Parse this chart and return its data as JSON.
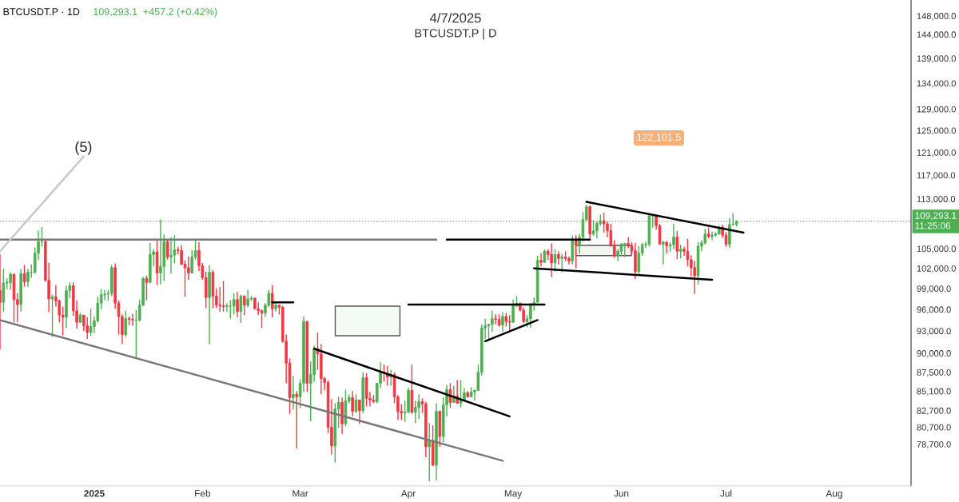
{
  "chart_data": {
    "type": "candlestick",
    "title": "4/7/2025",
    "subtitle": "BTCUSDT.P | D",
    "annotations": [
      "BTCUSDT.P · 1D",
      "109,293.1  +457.2 (+0.42%)",
      "(5)",
      "122,101.5"
    ],
    "x": [
      "2024-12-05",
      "2024-12-06",
      "2024-12-07",
      "2024-12-08",
      "2024-12-09",
      "2024-12-10",
      "2024-12-11",
      "2024-12-12",
      "2024-12-13",
      "2024-12-14",
      "2024-12-15",
      "2024-12-16",
      "2024-12-17",
      "2024-12-18",
      "2024-12-19",
      "2024-12-20",
      "2024-12-21",
      "2024-12-22",
      "2024-12-23",
      "2024-12-24",
      "2024-12-25",
      "2024-12-26",
      "2024-12-27",
      "2024-12-28",
      "2024-12-29",
      "2024-12-30",
      "2024-12-31",
      "2025-01-01",
      "2025-01-02",
      "2025-01-03",
      "2025-01-04",
      "2025-01-05",
      "2025-01-06",
      "2025-01-07",
      "2025-01-08",
      "2025-01-09",
      "2025-01-10",
      "2025-01-11",
      "2025-01-12",
      "2025-01-13",
      "2025-01-14",
      "2025-01-15",
      "2025-01-16",
      "2025-01-17",
      "2025-01-18",
      "2025-01-19",
      "2025-01-20",
      "2025-01-21",
      "2025-01-22",
      "2025-01-23",
      "2025-01-24",
      "2025-01-25",
      "2025-01-26",
      "2025-01-27",
      "2025-01-28",
      "2025-01-29",
      "2025-01-30",
      "2025-01-31",
      "2025-02-01",
      "2025-02-02",
      "2025-02-03",
      "2025-02-04",
      "2025-02-05",
      "2025-02-06",
      "2025-02-07",
      "2025-02-08",
      "2025-02-09",
      "2025-02-10",
      "2025-02-11",
      "2025-02-12",
      "2025-02-13",
      "2025-02-14",
      "2025-02-15",
      "2025-02-16",
      "2025-02-17",
      "2025-02-18",
      "2025-02-19",
      "2025-02-20",
      "2025-02-21",
      "2025-02-22",
      "2025-02-23",
      "2025-02-24",
      "2025-02-25",
      "2025-02-26",
      "2025-02-27",
      "2025-02-28",
      "2025-03-01",
      "2025-03-02",
      "2025-03-03",
      "2025-03-04",
      "2025-03-05",
      "2025-03-06",
      "2025-03-07",
      "2025-03-08",
      "2025-03-09",
      "2025-03-10",
      "2025-03-11",
      "2025-03-12",
      "2025-03-13",
      "2025-03-14",
      "2025-03-15",
      "2025-03-16",
      "2025-03-17",
      "2025-03-18",
      "2025-03-19",
      "2025-03-20",
      "2025-03-21",
      "2025-03-22",
      "2025-03-23",
      "2025-03-24",
      "2025-03-25",
      "2025-03-26",
      "2025-03-27",
      "2025-03-28",
      "2025-03-29",
      "2025-03-30",
      "2025-03-31",
      "2025-04-01",
      "2025-04-02",
      "2025-04-03",
      "2025-04-04",
      "2025-04-05",
      "2025-04-06",
      "2025-04-07",
      "2025-04-08",
      "2025-04-09",
      "2025-04-10",
      "2025-04-11",
      "2025-04-12",
      "2025-04-13",
      "2025-04-14",
      "2025-04-15",
      "2025-04-16",
      "2025-04-17",
      "2025-04-18",
      "2025-04-19",
      "2025-04-20",
      "2025-04-21",
      "2025-04-22",
      "2025-04-23",
      "2025-04-24",
      "2025-04-25",
      "2025-04-26",
      "2025-04-27",
      "2025-04-28",
      "2025-04-29",
      "2025-04-30",
      "2025-05-01",
      "2025-05-02",
      "2025-05-03",
      "2025-05-04",
      "2025-05-05",
      "2025-05-06",
      "2025-05-07",
      "2025-05-08",
      "2025-05-09",
      "2025-05-10",
      "2025-05-11",
      "2025-05-12",
      "2025-05-13",
      "2025-05-14",
      "2025-05-15",
      "2025-05-16",
      "2025-05-17",
      "2025-05-18",
      "2025-05-19",
      "2025-05-20",
      "2025-05-21",
      "2025-05-22",
      "2025-05-23",
      "2025-05-24",
      "2025-05-25",
      "2025-05-26",
      "2025-05-27",
      "2025-05-28",
      "2025-05-29",
      "2025-05-30",
      "2025-05-31",
      "2025-06-01",
      "2025-06-02",
      "2025-06-03",
      "2025-06-04",
      "2025-06-05",
      "2025-06-06",
      "2025-06-07",
      "2025-06-08",
      "2025-06-09",
      "2025-06-10",
      "2025-06-11",
      "2025-06-12",
      "2025-06-13",
      "2025-06-14",
      "2025-06-15",
      "2025-06-16",
      "2025-06-17",
      "2025-06-18",
      "2025-06-19",
      "2025-06-20",
      "2025-06-21",
      "2025-06-22",
      "2025-06-23",
      "2025-06-24",
      "2025-06-25",
      "2025-06-26",
      "2025-06-27",
      "2025-06-28",
      "2025-06-29",
      "2025-06-30",
      "2025-07-01",
      "2025-07-02",
      "2025-07-03",
      "2025-07-04"
    ],
    "ohlc": [
      [
        98700,
        104100,
        90500,
        97000
      ],
      [
        97000,
        101900,
        95700,
        99800
      ],
      [
        99800,
        100500,
        98900,
        99900
      ],
      [
        99900,
        101400,
        98800,
        101100
      ],
      [
        101100,
        101200,
        94200,
        97400
      ],
      [
        97400,
        98300,
        94200,
        96700
      ],
      [
        96700,
        101900,
        95700,
        101200
      ],
      [
        101200,
        102500,
        99300,
        100000
      ],
      [
        100000,
        101900,
        99200,
        101400
      ],
      [
        101400,
        102600,
        100600,
        101400
      ],
      [
        101400,
        105200,
        101200,
        104300
      ],
      [
        104300,
        107800,
        103300,
        106100
      ],
      [
        106100,
        108400,
        105300,
        106100
      ],
      [
        106100,
        106500,
        100000,
        100200
      ],
      [
        100200,
        102800,
        95600,
        97500
      ],
      [
        97500,
        98100,
        92200,
        97800
      ],
      [
        97800,
        99500,
        96400,
        97200
      ],
      [
        97200,
        97400,
        94200,
        95200
      ],
      [
        95200,
        96400,
        92400,
        94900
      ],
      [
        94900,
        99400,
        93400,
        98700
      ],
      [
        98700,
        99900,
        97600,
        99400
      ],
      [
        99400,
        99900,
        95100,
        95800
      ],
      [
        95800,
        97300,
        93300,
        94200
      ],
      [
        94200,
        95500,
        94100,
        95200
      ],
      [
        95200,
        95200,
        93000,
        93700
      ],
      [
        93700,
        94900,
        91900,
        92800
      ],
      [
        92800,
        96100,
        92300,
        93600
      ],
      [
        93600,
        95000,
        92700,
        94400
      ],
      [
        94400,
        97800,
        94200,
        96900
      ],
      [
        96900,
        98900,
        96000,
        98100
      ],
      [
        98100,
        98800,
        97300,
        98200
      ],
      [
        98200,
        98800,
        97200,
        98300
      ],
      [
        98300,
        102500,
        97900,
        102100
      ],
      [
        102100,
        102700,
        96100,
        96900
      ],
      [
        96900,
        97300,
        92500,
        95000
      ],
      [
        95000,
        95300,
        91200,
        92500
      ],
      [
        92500,
        95800,
        92200,
        94700
      ],
      [
        94700,
        95000,
        93800,
        94600
      ],
      [
        94600,
        95400,
        93700,
        94500
      ],
      [
        94500,
        95900,
        89300,
        94500
      ],
      [
        94500,
        97400,
        94300,
        96600
      ],
      [
        96600,
        100700,
        96500,
        100500
      ],
      [
        100500,
        100900,
        97300,
        99900
      ],
      [
        99900,
        105900,
        99900,
        104100
      ],
      [
        104100,
        104900,
        102300,
        104500
      ],
      [
        104500,
        106300,
        99500,
        101300
      ],
      [
        101300,
        109600,
        99600,
        102300
      ],
      [
        102300,
        107200,
        100100,
        106100
      ],
      [
        106100,
        106400,
        103300,
        103700
      ],
      [
        103700,
        106800,
        101200,
        104000
      ],
      [
        104000,
        107100,
        102800,
        104800
      ],
      [
        104800,
        105300,
        104100,
        104700
      ],
      [
        104700,
        105500,
        102500,
        102600
      ],
      [
        102600,
        103200,
        97800,
        102100
      ],
      [
        102100,
        103800,
        100300,
        101300
      ],
      [
        101300,
        104800,
        101300,
        103700
      ],
      [
        103700,
        106500,
        103300,
        104700
      ],
      [
        104700,
        106000,
        101600,
        102400
      ],
      [
        102400,
        102800,
        100300,
        100600
      ],
      [
        100600,
        101500,
        96200,
        97700
      ],
      [
        97700,
        102500,
        91200,
        101400
      ],
      [
        101400,
        101700,
        96200,
        97900
      ],
      [
        97900,
        99000,
        96200,
        96600
      ],
      [
        96600,
        99200,
        95700,
        96500
      ],
      [
        96500,
        100100,
        95700,
        96400
      ],
      [
        96400,
        96900,
        95700,
        96500
      ],
      [
        96500,
        97300,
        94700,
        96500
      ],
      [
        96500,
        98300,
        95300,
        97400
      ],
      [
        97400,
        98500,
        94900,
        95700
      ],
      [
        95700,
        98100,
        94100,
        97900
      ],
      [
        97900,
        98000,
        95200,
        96600
      ],
      [
        96600,
        98800,
        96300,
        97500
      ],
      [
        97500,
        97900,
        97200,
        97600
      ],
      [
        97600,
        97700,
        96000,
        96100
      ],
      [
        96100,
        97000,
        95200,
        95800
      ],
      [
        95800,
        96000,
        93400,
        95500
      ],
      [
        95500,
        96900,
        95000,
        96600
      ],
      [
        96600,
        98800,
        96300,
        98300
      ],
      [
        98300,
        99500,
        94900,
        96100
      ],
      [
        96100,
        96900,
        95700,
        96600
      ],
      [
        96600,
        96700,
        95300,
        96300
      ],
      [
        96300,
        96500,
        91400,
        91600
      ],
      [
        91600,
        92500,
        86100,
        88700
      ],
      [
        88700,
        89300,
        82300,
        84300
      ],
      [
        84300,
        87000,
        82800,
        84700
      ],
      [
        84700,
        85100,
        78200,
        84400
      ],
      [
        84400,
        86600,
        83000,
        86100
      ],
      [
        86100,
        95000,
        85000,
        94300
      ],
      [
        94300,
        94400,
        85000,
        86100
      ],
      [
        86100,
        88900,
        81400,
        87200
      ],
      [
        87200,
        91000,
        86300,
        90600
      ],
      [
        90600,
        92800,
        87800,
        89900
      ],
      [
        89900,
        91200,
        84700,
        86700
      ],
      [
        86700,
        86900,
        85200,
        86200
      ],
      [
        86200,
        86500,
        80000,
        80700
      ],
      [
        80700,
        84100,
        77500,
        78500
      ],
      [
        78500,
        83600,
        76600,
        82900
      ],
      [
        82900,
        84400,
        80600,
        83700
      ],
      [
        83700,
        84300,
        79900,
        81100
      ],
      [
        81100,
        85300,
        80800,
        83900
      ],
      [
        83900,
        84700,
        83600,
        84300
      ],
      [
        84300,
        85100,
        82000,
        82600
      ],
      [
        82600,
        84700,
        82400,
        84000
      ],
      [
        84000,
        84000,
        81100,
        82700
      ],
      [
        82700,
        87500,
        82400,
        86800
      ],
      [
        86800,
        87400,
        83200,
        84200
      ],
      [
        84200,
        85000,
        83200,
        84000
      ],
      [
        84000,
        84600,
        83600,
        83800
      ],
      [
        83800,
        86100,
        83600,
        86100
      ],
      [
        86100,
        88800,
        85500,
        87500
      ],
      [
        87500,
        88500,
        86300,
        87400
      ],
      [
        87400,
        88300,
        85800,
        86900
      ],
      [
        86900,
        87800,
        85800,
        87200
      ],
      [
        87200,
        87500,
        83600,
        84400
      ],
      [
        84400,
        84600,
        81600,
        82600
      ],
      [
        82600,
        83500,
        81600,
        82400
      ],
      [
        82400,
        83900,
        81300,
        82500
      ],
      [
        82500,
        85500,
        82400,
        85200
      ],
      [
        85200,
        88500,
        82300,
        82500
      ],
      [
        82500,
        83900,
        81200,
        83100
      ],
      [
        83100,
        84700,
        81700,
        83800
      ],
      [
        83800,
        84200,
        82400,
        83500
      ],
      [
        83500,
        83800,
        77200,
        78400
      ],
      [
        78400,
        81200,
        74500,
        79100
      ],
      [
        79100,
        80900,
        76200,
        76300
      ],
      [
        76300,
        83600,
        74600,
        82600
      ],
      [
        82600,
        82700,
        78400,
        79600
      ],
      [
        79600,
        84300,
        78900,
        83400
      ],
      [
        83400,
        85900,
        82000,
        85300
      ],
      [
        85300,
        86100,
        83000,
        83700
      ],
      [
        83700,
        85800,
        83700,
        84500
      ],
      [
        84500,
        86500,
        83600,
        83600
      ],
      [
        83600,
        86500,
        83100,
        84000
      ],
      [
        84000,
        85500,
        83900,
        84900
      ],
      [
        84900,
        85100,
        84300,
        84400
      ],
      [
        84400,
        85600,
        84400,
        85000
      ],
      [
        85000,
        85300,
        83900,
        85200
      ],
      [
        85200,
        88500,
        85100,
        87500
      ],
      [
        87500,
        93900,
        87100,
        93400
      ],
      [
        93400,
        94700,
        91900,
        93700
      ],
      [
        93700,
        94000,
        91700,
        93900
      ],
      [
        93900,
        95800,
        92900,
        94700
      ],
      [
        94700,
        95300,
        93900,
        94600
      ],
      [
        94600,
        95300,
        93600,
        93800
      ],
      [
        93800,
        95600,
        92900,
        95000
      ],
      [
        95000,
        95500,
        93600,
        94300
      ],
      [
        94300,
        95200,
        92900,
        94200
      ],
      [
        94200,
        97400,
        94100,
        96500
      ],
      [
        96500,
        97900,
        96300,
        96900
      ],
      [
        96900,
        96900,
        95700,
        95900
      ],
      [
        95900,
        96300,
        94100,
        94300
      ],
      [
        94300,
        95200,
        93500,
        94700
      ],
      [
        94700,
        96900,
        93400,
        96800
      ],
      [
        96800,
        97700,
        95800,
        97000
      ],
      [
        97000,
        103900,
        97000,
        103200
      ],
      [
        103200,
        104300,
        102300,
        102900
      ],
      [
        102900,
        104900,
        102900,
        104600
      ],
      [
        104600,
        104900,
        103300,
        104100
      ],
      [
        104100,
        105800,
        100700,
        102800
      ],
      [
        102800,
        104900,
        101500,
        104100
      ],
      [
        104100,
        104600,
        102600,
        103500
      ],
      [
        103500,
        104200,
        101400,
        103700
      ],
      [
        103700,
        104600,
        103100,
        103500
      ],
      [
        103500,
        103800,
        102600,
        103100
      ],
      [
        103100,
        107000,
        102600,
        106500
      ],
      [
        106500,
        107100,
        102000,
        105600
      ],
      [
        105600,
        107300,
        104200,
        106800
      ],
      [
        106800,
        110800,
        106100,
        109600
      ],
      [
        109600,
        112000,
        109300,
        111700
      ],
      [
        111700,
        111900,
        106600,
        107300
      ],
      [
        107300,
        109500,
        107000,
        107800
      ],
      [
        107800,
        109300,
        106600,
        109000
      ],
      [
        109000,
        110400,
        108600,
        109400
      ],
      [
        109400,
        110700,
        107500,
        108900
      ],
      [
        108900,
        109300,
        106800,
        107800
      ],
      [
        107800,
        108900,
        105300,
        105600
      ],
      [
        105600,
        106300,
        103600,
        103900
      ],
      [
        103900,
        104900,
        103100,
        104600
      ],
      [
        104600,
        105900,
        103900,
        105700
      ],
      [
        105700,
        105900,
        103700,
        105800
      ],
      [
        105800,
        106800,
        105100,
        105400
      ],
      [
        105400,
        106000,
        104100,
        104700
      ],
      [
        104700,
        105900,
        100400,
        101500
      ],
      [
        101500,
        105400,
        101100,
        104300
      ],
      [
        104300,
        105900,
        103900,
        105600
      ],
      [
        105600,
        106100,
        105100,
        105700
      ],
      [
        105700,
        110500,
        105300,
        110200
      ],
      [
        110200,
        110400,
        108300,
        110200
      ],
      [
        110200,
        110400,
        108000,
        108600
      ],
      [
        108600,
        108900,
        105600,
        105700
      ],
      [
        105700,
        106200,
        102600,
        106000
      ],
      [
        106000,
        106200,
        104300,
        105400
      ],
      [
        105400,
        106000,
        104500,
        105600
      ],
      [
        105600,
        108900,
        104900,
        106800
      ],
      [
        106800,
        107800,
        103400,
        104600
      ],
      [
        104600,
        105600,
        103500,
        104900
      ],
      [
        104900,
        105300,
        103900,
        104600
      ],
      [
        104600,
        106500,
        102300,
        103300
      ],
      [
        103300,
        104000,
        100800,
        102100
      ],
      [
        102100,
        103100,
        98200,
        100900
      ],
      [
        100900,
        106000,
        99600,
        105400
      ],
      [
        105400,
        106300,
        104600,
        105900
      ],
      [
        105900,
        108100,
        105600,
        107300
      ],
      [
        107300,
        108300,
        106600,
        106900
      ],
      [
        106900,
        107700,
        106300,
        107100
      ],
      [
        107100,
        107600,
        106900,
        107300
      ],
      [
        107300,
        108600,
        107200,
        108400
      ],
      [
        108400,
        108800,
        106700,
        107100
      ],
      [
        107100,
        107600,
        105300,
        105700
      ],
      [
        105700,
        109800,
        105100,
        108800
      ],
      [
        108800,
        110600,
        108600,
        108835.9
      ],
      [
        108835.9,
        109500,
        108500,
        109293.1
      ]
    ],
    "colors": [
      "#f23645",
      "#4caf50",
      "#4caf50",
      "#4caf50",
      "#f23645",
      "#f23645",
      "#4caf50",
      "#f23645",
      "#4caf50",
      "#4caf50",
      "#4caf50",
      "#4caf50",
      "#4caf50",
      "#f23645",
      "#f23645",
      "#4caf50",
      "#f23645",
      "#f23645",
      "#f23645",
      "#4caf50",
      "#4caf50",
      "#f23645",
      "#f23645",
      "#4caf50",
      "#f23645",
      "#f23645",
      "#4caf50",
      "#4caf50",
      "#4caf50",
      "#4caf50",
      "#4caf50",
      "#4caf50",
      "#4caf50",
      "#f23645",
      "#f23645",
      "#f23645",
      "#4caf50",
      "#f23645",
      "#f23645",
      "#4caf50",
      "#4caf50",
      "#4caf50",
      "#f23645",
      "#4caf50",
      "#4caf50",
      "#f23645",
      "#4caf50",
      "#4caf50",
      "#f23645",
      "#4caf50",
      "#4caf50",
      "#f23645",
      "#f23645",
      "#f23645",
      "#f23645",
      "#4caf50",
      "#4caf50",
      "#f23645",
      "#f23645",
      "#f23645",
      "#4caf50",
      "#f23645",
      "#f23645",
      "#f23645",
      "#f23645",
      "#4caf50",
      "#4caf50",
      "#4caf50",
      "#f23645",
      "#4caf50",
      "#f23645",
      "#4caf50",
      "#4caf50",
      "#f23645",
      "#f23645",
      "#f23645",
      "#4caf50",
      "#4caf50",
      "#f23645",
      "#4caf50",
      "#f23645",
      "#f23645",
      "#f23645",
      "#f23645",
      "#4caf50",
      "#f23645",
      "#4caf50",
      "#4caf50",
      "#f23645",
      "#4caf50",
      "#4caf50",
      "#f23645",
      "#f23645",
      "#f23645",
      "#f23645",
      "#f23645",
      "#4caf50",
      "#4caf50",
      "#f23645",
      "#4caf50",
      "#4caf50",
      "#f23645",
      "#4caf50",
      "#f23645",
      "#4caf50",
      "#f23645",
      "#f23645",
      "#f23645",
      "#4caf50",
      "#4caf50",
      "#f23645",
      "#f23645",
      "#4caf50",
      "#f23645",
      "#f23645",
      "#f23645",
      "#4caf50",
      "#4caf50",
      "#f23645",
      "#4caf50",
      "#4caf50",
      "#f23645",
      "#f23645",
      "#4caf50",
      "#f23645",
      "#4caf50",
      "#f23645",
      "#4caf50",
      "#4caf50",
      "#f23645",
      "#4caf50",
      "#f23645",
      "#4caf50",
      "#4caf50",
      "#f23645",
      "#4caf50",
      "#4caf50",
      "#4caf50",
      "#4caf50",
      "#4caf50",
      "#4caf50",
      "#4caf50",
      "#f23645",
      "#f23645",
      "#4caf50",
      "#f23645",
      "#f23645",
      "#4caf50",
      "#4caf50",
      "#f23645",
      "#f23645",
      "#4caf50",
      "#4caf50",
      "#4caf50",
      "#4caf50",
      "#f23645",
      "#4caf50",
      "#f23645",
      "#f23645",
      "#4caf50",
      "#f23645",
      "#4caf50",
      "#f23645",
      "#f23645",
      "#4caf50",
      "#f23645",
      "#4caf50",
      "#4caf50",
      "#4caf50",
      "#f23645",
      "#4caf50",
      "#4caf50",
      "#4caf50",
      "#f23645",
      "#f23645",
      "#f23645",
      "#f23645",
      "#4caf50",
      "#4caf50",
      "#4caf50",
      "#f23645",
      "#f23645",
      "#f23645",
      "#4caf50",
      "#4caf50",
      "#4caf50",
      "#4caf50",
      "#4caf50",
      "#f23645",
      "#f23645",
      "#4caf50",
      "#f23645",
      "#4caf50",
      "#4caf50",
      "#f23645",
      "#4caf50",
      "#f23645",
      "#f23645",
      "#f23645",
      "#f23645",
      "#4caf50",
      "#4caf50",
      "#4caf50",
      "#f23645",
      "#4caf50",
      "#4caf50",
      "#4caf50",
      "#f23645",
      "#f23645",
      "#4caf50",
      "#4caf50",
      "#4caf50"
    ],
    "series": [
      {
        "type": "line",
        "color": "#787878",
        "x": [
          "2024-12-05",
          "2025-04-09"
        ],
        "values": [
          106400,
          106400
        ]
      },
      {
        "type": "line",
        "color": "#000000",
        "x": [
          "2025-04-12",
          "2025-05-23"
        ],
        "values": [
          106400,
          106400
        ]
      },
      {
        "type": "line",
        "color": "#787878",
        "x": [
          "2024-12-05",
          "2025-04-28"
        ],
        "values": [
          94500,
          76800
        ]
      },
      {
        "type": "line",
        "color": "#c8c8c8",
        "x": [
          "2024-12-05",
          "2024-12-29"
        ],
        "values": [
          104600,
          120300
        ]
      },
      {
        "type": "line",
        "color": "#000000",
        "x": [
          "2025-03-05",
          "2025-04-30"
        ],
        "values": [
          90600,
          82000
        ]
      },
      {
        "type": "line",
        "color": "#000000",
        "x": [
          "2025-02-21",
          "2025-02-27"
        ],
        "values": [
          97000,
          97000
        ]
      },
      {
        "type": "line",
        "color": "#000000",
        "x": [
          "2025-04-01",
          "2025-05-10"
        ],
        "values": [
          96700,
          96700
        ]
      },
      {
        "type": "line",
        "color": "#000000",
        "x": [
          "2025-04-23",
          "2025-05-08"
        ],
        "values": [
          91600,
          94500
        ]
      },
      {
        "type": "line",
        "color": "#000000",
        "x": [
          "2025-05-07",
          "2025-06-27"
        ],
        "values": [
          102000,
          100300
        ]
      },
      {
        "type": "line",
        "color": "#000000",
        "x": [
          "2025-05-22",
          "2025-07-06"
        ],
        "values": [
          112500,
          107500
        ]
      }
    ],
    "ref_lines": [
      {
        "axis": "y",
        "value": 109293.1,
        "label": "109,293.1\n11:25:06",
        "color": "#9e9e9e",
        "line_style": "dotted"
      }
    ],
    "log": true,
    "xlim": [
      "2024-12-05",
      "2025-08-23"
    ],
    "xticks": [
      {
        "value": "2025-01-01",
        "label": "2025"
      },
      {
        "value": "2025-02-01",
        "label": "Feb"
      },
      {
        "value": "2025-03-01",
        "label": "Mar"
      },
      {
        "value": "2025-04-01",
        "label": "Apr"
      },
      {
        "value": "2025-05-01",
        "label": "May"
      },
      {
        "value": "2025-06-01",
        "label": "Jun"
      },
      {
        "value": "2025-07-01",
        "label": "Jul"
      },
      {
        "value": "2025-08-01",
        "label": "Aug"
      }
    ],
    "ylim": [
      74000,
      151500
    ],
    "yticks": [
      {
        "value": 78700,
        "label": "78,700.0"
      },
      {
        "value": 80700,
        "label": "80,700.0"
      },
      {
        "value": 82700,
        "label": "82,700.0"
      },
      {
        "value": 85100,
        "label": "85,100.0"
      },
      {
        "value": 87500,
        "label": "87,500.0"
      },
      {
        "value": 90000,
        "label": "90,000.0"
      },
      {
        "value": 93000,
        "label": "93,000.0"
      },
      {
        "value": 96000,
        "label": "96,000.0"
      },
      {
        "value": 99000,
        "label": "99,000.0"
      },
      {
        "value": 102000,
        "label": "102,000.0"
      },
      {
        "value": 105000,
        "label": "105,000.0"
      },
      {
        "value": 113000,
        "label": "113,000.0"
      },
      {
        "value": 117000,
        "label": "117,000.0"
      },
      {
        "value": 121000,
        "label": "121,000.0"
      },
      {
        "value": 125000,
        "label": "125,000.0"
      },
      {
        "value": 129000,
        "label": "129,000.0"
      },
      {
        "value": 134000,
        "label": "134,000.0"
      },
      {
        "value": 139000,
        "label": "139,000.0"
      },
      {
        "value": 144000,
        "label": "144,000.0"
      },
      {
        "value": 148000,
        "label": "148,000.0"
      }
    ]
  }
}
